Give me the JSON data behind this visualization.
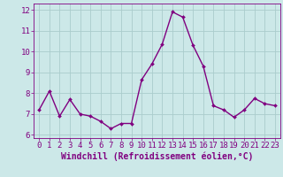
{
  "x": [
    0,
    1,
    2,
    3,
    4,
    5,
    6,
    7,
    8,
    9,
    10,
    11,
    12,
    13,
    14,
    15,
    16,
    17,
    18,
    19,
    20,
    21,
    22,
    23
  ],
  "y": [
    7.2,
    8.1,
    6.9,
    7.7,
    7.0,
    6.9,
    6.65,
    6.3,
    6.55,
    6.55,
    8.65,
    9.4,
    10.35,
    11.9,
    11.65,
    10.3,
    9.3,
    7.4,
    7.2,
    6.85,
    7.2,
    7.75,
    7.5,
    7.4
  ],
  "line_color": "#800080",
  "marker_color": "#800080",
  "bg_color": "#cce8e8",
  "grid_color": "#aacccc",
  "xlabel": "Windchill (Refroidissement éolien,°C)",
  "xlim": [
    -0.5,
    23.5
  ],
  "ylim": [
    5.85,
    12.3
  ],
  "yticks": [
    6,
    7,
    8,
    9,
    10,
    11,
    12
  ],
  "xticks": [
    0,
    1,
    2,
    3,
    4,
    5,
    6,
    7,
    8,
    9,
    10,
    11,
    12,
    13,
    14,
    15,
    16,
    17,
    18,
    19,
    20,
    21,
    22,
    23
  ],
  "tick_color": "#800080",
  "tick_fontsize": 6.5,
  "xlabel_fontsize": 7,
  "line_width": 1.0,
  "marker_size": 2.0
}
